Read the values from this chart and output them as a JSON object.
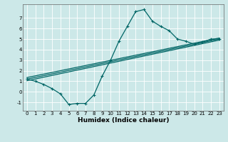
{
  "xlabel": "Humidex (Indice chaleur)",
  "bg_color": "#cce8e8",
  "grid_color": "#ffffff",
  "line_color": "#006666",
  "xlim": [
    -0.5,
    23.5
  ],
  "ylim": [
    -1.8,
    8.3
  ],
  "xticks": [
    0,
    1,
    2,
    3,
    4,
    5,
    6,
    7,
    8,
    9,
    10,
    11,
    12,
    13,
    14,
    15,
    16,
    17,
    18,
    19,
    20,
    21,
    22,
    23
  ],
  "yticks": [
    -1,
    0,
    1,
    2,
    3,
    4,
    5,
    6,
    7
  ],
  "curve1_x": [
    0,
    1,
    2,
    3,
    4,
    5,
    6,
    7,
    8,
    9,
    10,
    11,
    12,
    13,
    14,
    15,
    16,
    17,
    18,
    19,
    20,
    21,
    22,
    23
  ],
  "curve1_y": [
    1.2,
    1.0,
    0.7,
    0.3,
    -0.2,
    -1.2,
    -1.1,
    -1.1,
    -0.3,
    1.5,
    3.0,
    4.8,
    6.2,
    7.6,
    7.8,
    6.7,
    6.2,
    5.8,
    5.0,
    4.8,
    4.5,
    4.7,
    5.0,
    5.0
  ],
  "line2_x": [
    0,
    23
  ],
  "line2_y": [
    1.2,
    5.0
  ],
  "line3_x": [
    0,
    23
  ],
  "line3_y": [
    1.35,
    5.1
  ],
  "line4_x": [
    0,
    23
  ],
  "line4_y": [
    1.05,
    4.9
  ]
}
